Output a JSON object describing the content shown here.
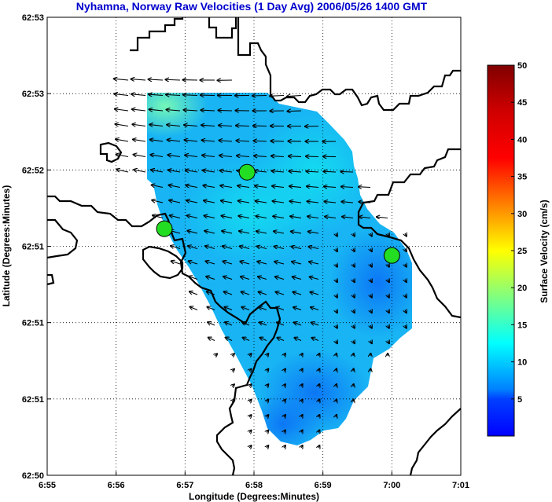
{
  "title": "Nyhamna, Norway Raw Velocities (1 Day Avg) 2006/05/26 1400 GMT",
  "map": {
    "xlabel": "Longitude (Degrees:Minutes)",
    "ylabel": "Latitude (Degrees:Minutes)",
    "x_ticks": [
      "6:55",
      "6:56",
      "6:57",
      "6:58",
      "6:59",
      "7:00",
      "7:01"
    ],
    "y_ticks": [
      "62:53",
      "62:53",
      "62:52",
      "62:51",
      "62:51",
      "62:51",
      "62:50"
    ],
    "stations": [
      {
        "lon_min": 56.7,
        "lat_idx": 2.77
      },
      {
        "lon_min": 57.9,
        "lat_idx": 2.03
      },
      {
        "lon_min": 60.0,
        "lat_idx": 3.12
      }
    ],
    "colors": {
      "land_line": "#000000",
      "station": "#22dd22",
      "grid": "#000000"
    }
  },
  "colorbar": {
    "label": "Surface Velocity (cm/s)",
    "min": 0,
    "max": 50,
    "ticks": [
      "50",
      "45",
      "40",
      "35",
      "30",
      "25",
      "20",
      "15",
      "10",
      "5"
    ],
    "colormap": "jet"
  }
}
